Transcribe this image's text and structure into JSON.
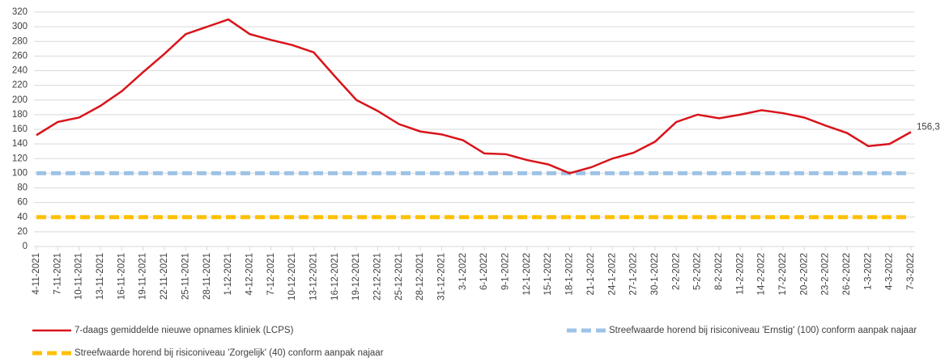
{
  "chart_data": {
    "type": "line",
    "categories": [
      "4-11-2021",
      "7-11-2021",
      "10-11-2021",
      "13-11-2021",
      "16-11-2021",
      "19-11-2021",
      "22-11-2021",
      "25-11-2021",
      "28-11-2021",
      "1-12-2021",
      "4-12-2021",
      "7-12-2021",
      "10-12-2021",
      "13-12-2021",
      "16-12-2021",
      "19-12-2021",
      "22-12-2021",
      "25-12-2021",
      "28-12-2021",
      "31-12-2021",
      "3-1-2022",
      "6-1-2022",
      "9-1-2022",
      "12-1-2022",
      "15-1-2022",
      "18-1-2022",
      "21-1-2022",
      "24-1-2022",
      "27-1-2022",
      "30-1-2022",
      "2-2-2022",
      "5-2-2022",
      "8-2-2022",
      "11-2-2022",
      "14-2-2022",
      "17-2-2022",
      "20-2-2022",
      "23-2-2022",
      "26-2-2022",
      "1-3-2022",
      "4-3-2022",
      "7-3-2022"
    ],
    "series": [
      {
        "name": "7-daags gemiddelde nieuwe opnames kliniek (LCPS)",
        "color": "#d9141b",
        "dashed": false,
        "values": [
          152,
          170,
          176,
          192,
          212,
          238,
          263,
          290,
          300,
          310,
          290,
          282,
          275,
          265,
          232,
          200,
          185,
          167,
          157,
          153,
          145,
          127,
          126,
          118,
          112,
          100,
          108,
          120,
          128,
          143,
          170,
          180,
          175,
          180,
          186,
          182,
          176,
          165,
          155,
          137,
          140,
          156.3
        ],
        "value_labels": [
          null,
          null,
          null,
          null,
          null,
          null,
          null,
          null,
          null,
          null,
          null,
          null,
          null,
          null,
          null,
          null,
          null,
          null,
          null,
          null,
          null,
          null,
          null,
          null,
          null,
          null,
          null,
          null,
          null,
          null,
          null,
          null,
          null,
          null,
          null,
          null,
          null,
          null,
          null,
          null,
          null,
          "156,3"
        ]
      },
      {
        "name": "Streefwaarde horend bij risiconiveau 'Ernstig' (100) conform aanpak najaar",
        "color": "#9dc3e6",
        "dashed": true,
        "values": [
          100,
          100,
          100,
          100,
          100,
          100,
          100,
          100,
          100,
          100,
          100,
          100,
          100,
          100,
          100,
          100,
          100,
          100,
          100,
          100,
          100,
          100,
          100,
          100,
          100,
          100,
          100,
          100,
          100,
          100,
          100,
          100,
          100,
          100,
          100,
          100,
          100,
          100,
          100,
          100,
          100,
          100
        ]
      },
      {
        "name": "Streefwaarde horend bij risiconiveau 'Zorgelijk' (40) conform aanpak najaar",
        "color": "#ffc000",
        "dashed": true,
        "values": [
          40,
          40,
          40,
          40,
          40,
          40,
          40,
          40,
          40,
          40,
          40,
          40,
          40,
          40,
          40,
          40,
          40,
          40,
          40,
          40,
          40,
          40,
          40,
          40,
          40,
          40,
          40,
          40,
          40,
          40,
          40,
          40,
          40,
          40,
          40,
          40,
          40,
          40,
          40,
          40,
          40,
          40
        ]
      }
    ],
    "ylim": [
      0,
      320
    ],
    "yticks": [
      0,
      20,
      40,
      60,
      80,
      100,
      120,
      140,
      160,
      180,
      200,
      220,
      240,
      260,
      280,
      300,
      320
    ],
    "grid": true
  }
}
